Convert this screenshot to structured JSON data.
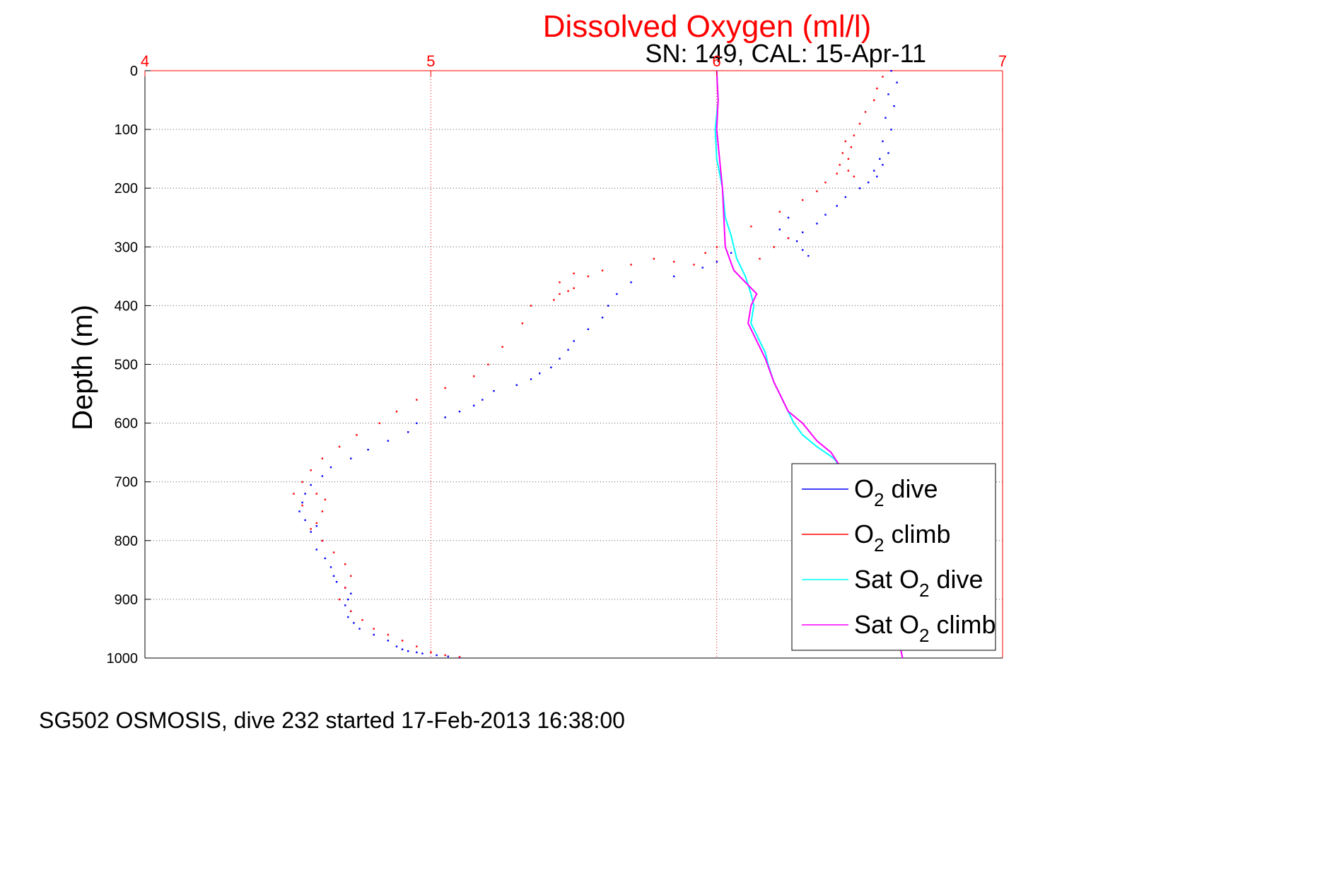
{
  "chart_data": {
    "type": "scatter",
    "title": "Dissolved Oxygen (ml/l)",
    "subtitle": "SN: 149, CAL: 15-Apr-11",
    "footer": "SG502 OSMOSIS, dive 232 started 17-Feb-2013 16:38:00",
    "xlabel": "Dissolved Oxygen (ml/l)",
    "ylabel": "Depth (m)",
    "xlim": [
      4,
      7
    ],
    "ylim": [
      0,
      1000
    ],
    "y_reversed": true,
    "x_axis_position": "top",
    "x_ticks": [
      "4",
      "5",
      "6",
      "7"
    ],
    "y_ticks": [
      "0",
      "100",
      "200",
      "300",
      "400",
      "500",
      "600",
      "700",
      "800",
      "900",
      "1000"
    ],
    "grid": true,
    "legend_position": "lower-right",
    "colors": {
      "title": "#ff0000",
      "x_axis": "#ff0000",
      "grid": "#555555"
    },
    "series": [
      {
        "name": "O2 dive",
        "legend_base": "O",
        "legend_sub": "2",
        "legend_rest": " dive",
        "color": "#0000ff",
        "style": "dots",
        "x": [
          6.61,
          6.63,
          6.6,
          6.62,
          6.59,
          6.61,
          6.58,
          6.6,
          6.57,
          6.58,
          6.55,
          6.56,
          6.53,
          6.5,
          6.45,
          6.42,
          6.38,
          6.35,
          6.3,
          6.28,
          6.3,
          6.32,
          6.25,
          6.22,
          6.25,
          6.05,
          6.0,
          5.95,
          5.85,
          5.7,
          5.65,
          5.62,
          5.6,
          5.55,
          5.5,
          5.48,
          5.45,
          5.42,
          5.38,
          5.35,
          5.3,
          5.22,
          5.18,
          5.15,
          5.1,
          5.05,
          4.95,
          4.92,
          4.85,
          4.78,
          4.72,
          4.65,
          4.62,
          4.58,
          4.56,
          4.55,
          4.54,
          4.56,
          4.6,
          4.58,
          4.62,
          4.6,
          4.63,
          4.65,
          4.66,
          4.67,
          4.7,
          4.72,
          4.71,
          4.7,
          4.72,
          4.71,
          4.73,
          4.75,
          4.8,
          4.85,
          4.88,
          4.9,
          4.92,
          4.95,
          4.97,
          5.02,
          5.06,
          5.1
        ],
        "y": [
          0,
          20,
          40,
          60,
          80,
          100,
          120,
          140,
          150,
          160,
          170,
          180,
          190,
          200,
          215,
          230,
          245,
          260,
          275,
          290,
          305,
          315,
          250,
          270,
          285,
          310,
          325,
          335,
          350,
          360,
          380,
          400,
          420,
          440,
          460,
          475,
          490,
          505,
          515,
          525,
          535,
          545,
          560,
          570,
          580,
          590,
          600,
          615,
          630,
          645,
          660,
          675,
          690,
          705,
          720,
          735,
          750,
          765,
          775,
          785,
          800,
          815,
          830,
          845,
          860,
          870,
          880,
          890,
          900,
          910,
          920,
          930,
          940,
          950,
          960,
          970,
          980,
          985,
          988,
          990,
          992,
          995,
          997,
          999
        ]
      },
      {
        "name": "O2 climb",
        "legend_base": "O",
        "legend_sub": "2",
        "legend_rest": " climb",
        "color": "#ff0000",
        "style": "dots",
        "x": [
          6.58,
          6.56,
          6.55,
          6.52,
          6.5,
          6.48,
          6.45,
          6.47,
          6.44,
          6.46,
          6.43,
          6.46,
          6.48,
          6.42,
          6.38,
          6.35,
          6.3,
          6.22,
          6.12,
          6.25,
          6.2,
          6.15,
          6.0,
          5.96,
          5.92,
          5.85,
          5.78,
          5.7,
          5.5,
          5.45,
          5.48,
          5.43,
          5.5,
          5.55,
          5.6,
          5.45,
          5.35,
          5.32,
          5.25,
          5.2,
          5.15,
          5.05,
          4.95,
          4.88,
          4.82,
          4.74,
          4.68,
          4.62,
          4.58,
          4.55,
          4.52,
          4.55,
          4.6,
          4.63,
          4.62,
          4.6,
          4.58,
          4.62,
          4.66,
          4.7,
          4.72,
          4.7,
          4.68,
          4.72,
          4.76,
          4.8,
          4.85,
          4.9,
          4.95,
          5.0,
          5.05,
          5.1
        ],
        "y": [
          10,
          30,
          50,
          70,
          90,
          110,
          120,
          130,
          140,
          150,
          160,
          170,
          180,
          175,
          190,
          205,
          220,
          240,
          265,
          285,
          300,
          320,
          300,
          310,
          330,
          325,
          320,
          330,
          345,
          360,
          375,
          390,
          370,
          350,
          340,
          380,
          400,
          430,
          470,
          500,
          520,
          540,
          560,
          580,
          600,
          620,
          640,
          660,
          680,
          700,
          720,
          740,
          720,
          730,
          750,
          770,
          780,
          800,
          820,
          840,
          860,
          880,
          900,
          920,
          935,
          950,
          960,
          970,
          980,
          990,
          995,
          998
        ]
      },
      {
        "name": "Sat O2 dive",
        "legend_base": "Sat O",
        "legend_sub": "2",
        "legend_rest": " dive",
        "color": "#00ffff",
        "style": "line",
        "x": [
          6.0,
          6.005,
          5.995,
          6.0,
          6.02,
          6.03,
          6.05,
          6.06,
          6.07,
          6.1,
          6.12,
          6.13,
          6.12,
          6.15,
          6.17,
          6.18,
          6.2,
          6.22,
          6.24,
          6.27,
          6.3,
          6.35,
          6.41,
          6.44,
          6.48,
          6.53,
          6.58,
          6.62,
          6.65
        ],
        "y": [
          0,
          50,
          100,
          150,
          200,
          250,
          280,
          300,
          320,
          350,
          380,
          400,
          430,
          460,
          480,
          500,
          530,
          550,
          570,
          600,
          620,
          640,
          660,
          680,
          720,
          780,
          850,
          930,
          1000
        ]
      },
      {
        "name": "Sat O2 climb",
        "legend_base": "Sat O",
        "legend_sub": "2",
        "legend_rest": " climb",
        "color": "#ff00ff",
        "style": "line",
        "x": [
          6.0,
          6.005,
          6.0,
          6.01,
          6.02,
          6.025,
          6.03,
          6.06,
          6.1,
          6.14,
          6.12,
          6.11,
          6.15,
          6.17,
          6.2,
          6.22,
          6.25,
          6.3,
          6.35,
          6.4,
          6.44,
          6.48,
          6.53,
          6.58,
          6.62,
          6.65
        ],
        "y": [
          0,
          50,
          100,
          150,
          200,
          250,
          300,
          340,
          360,
          380,
          400,
          430,
          470,
          490,
          530,
          550,
          580,
          600,
          630,
          650,
          680,
          720,
          780,
          850,
          930,
          1000
        ]
      }
    ]
  }
}
